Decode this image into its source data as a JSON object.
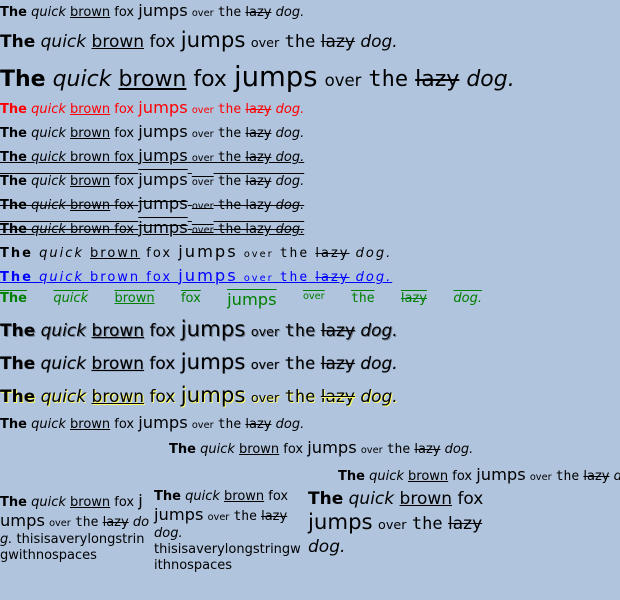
{
  "sentence": {
    "the": "The",
    "quick": "quick",
    "brown": "brown",
    "fox": "fox",
    "jumps": "jumps",
    "over": "over",
    "the2": "the",
    "lazy": "lazy",
    "dog": "dog."
  },
  "long_word": "thisisaverylongstringwithnospaces",
  "colors": {
    "background": "#b0c4de",
    "red": "#ff0000",
    "blue": "#0000ff",
    "green": "#008000",
    "yellow_glow": "#ffff66"
  }
}
